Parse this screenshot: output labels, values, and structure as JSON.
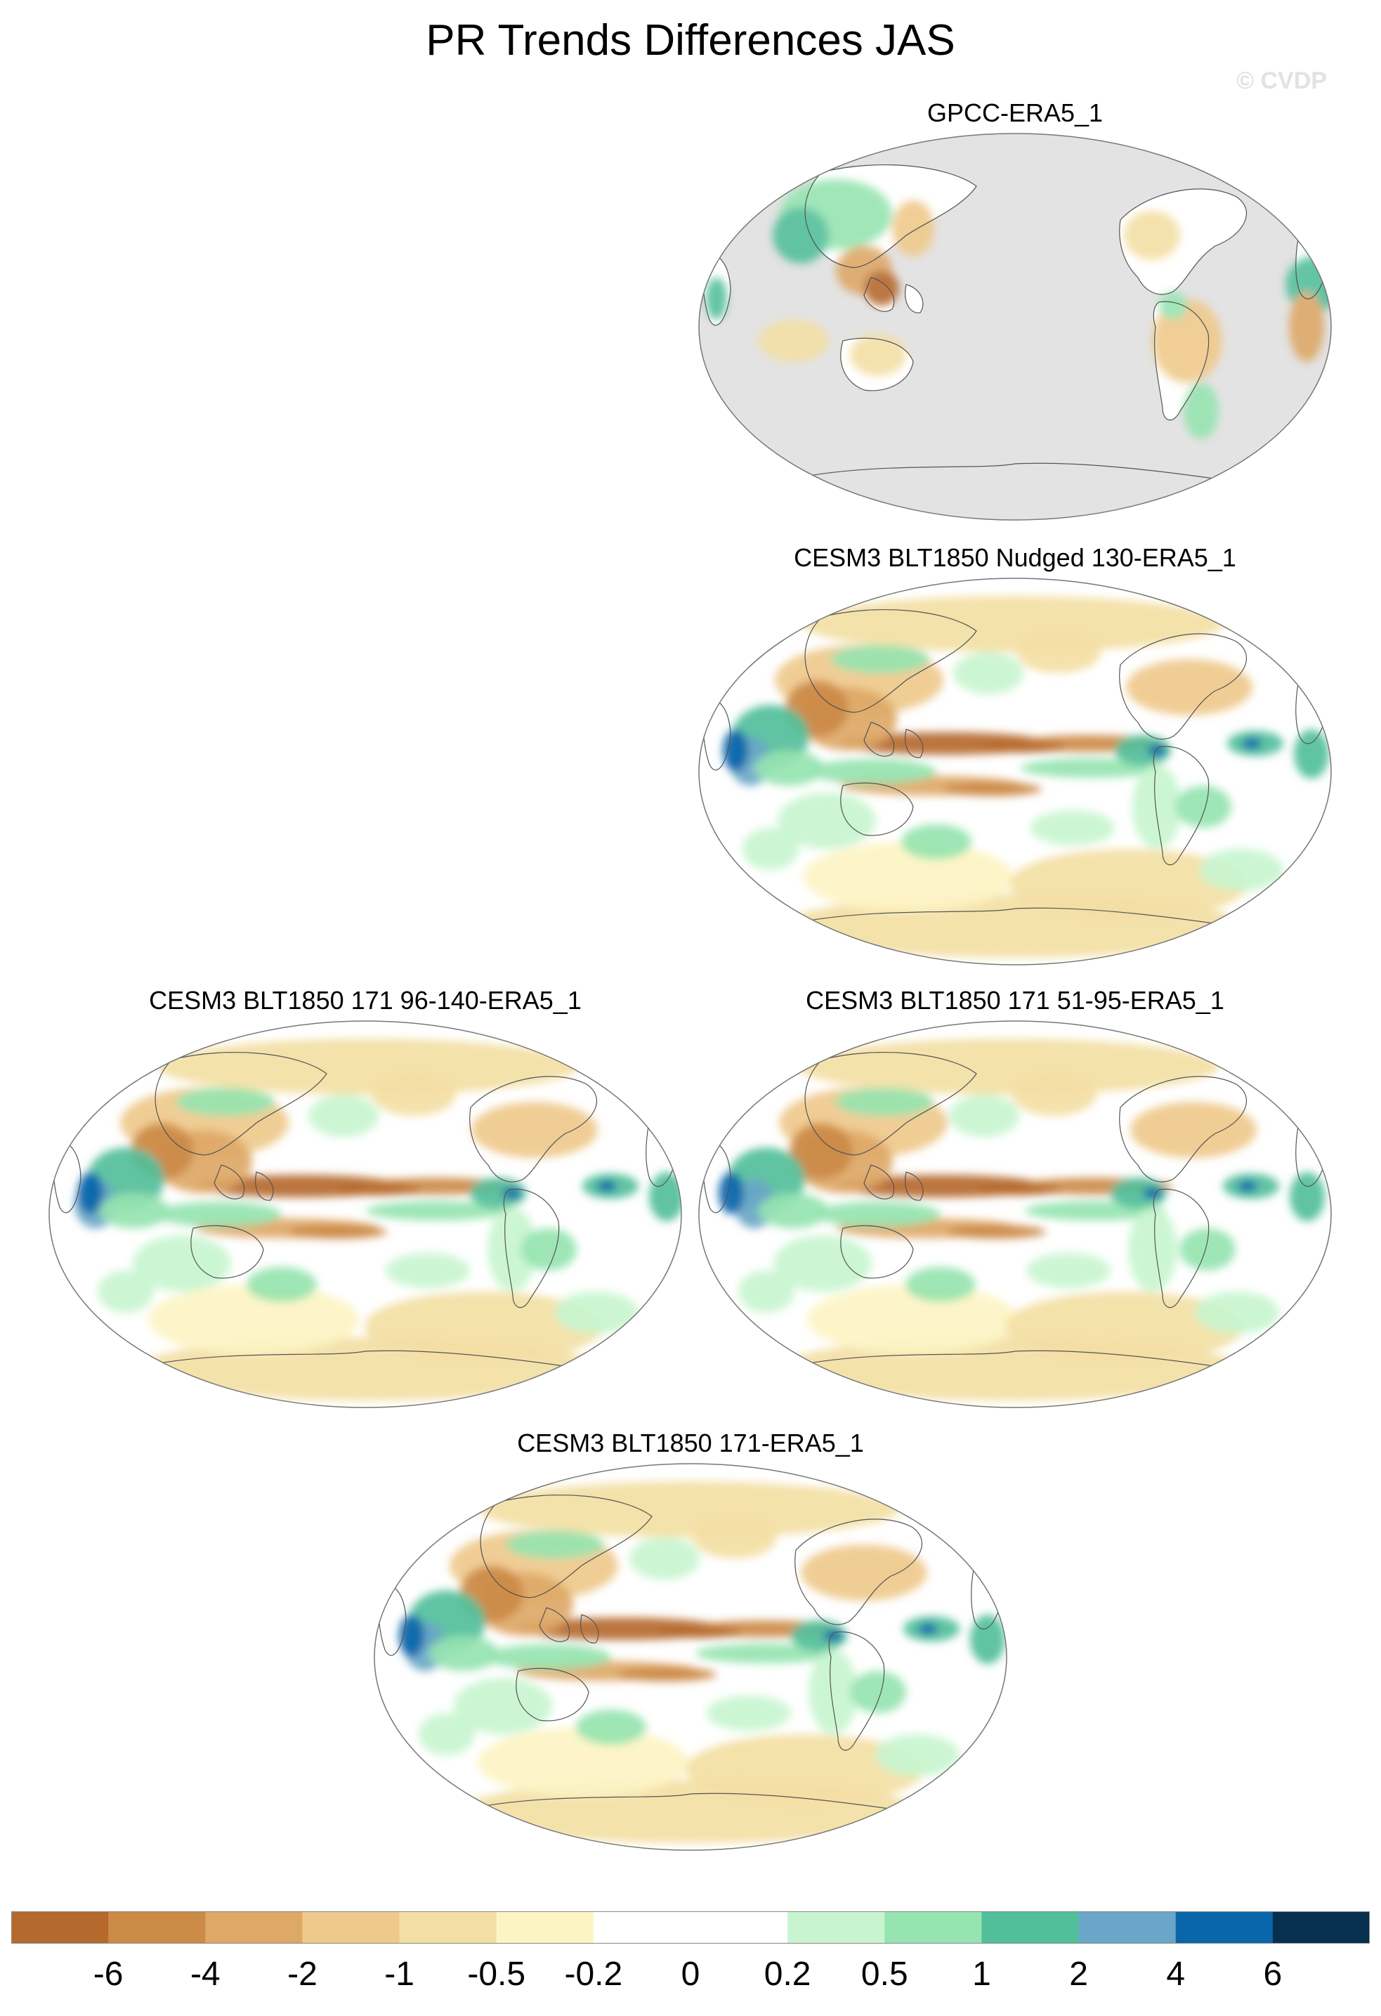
{
  "title": "PR Trends Differences JAS",
  "watermark": "© CVDP",
  "panels": [
    {
      "title": "GPCC-ERA5_1",
      "kind": "obs"
    },
    {
      "title": "CESM3 BLT1850 Nudged 130-ERA5_1",
      "kind": "model"
    },
    {
      "title": "CESM3 BLT1850 171 96-140-ERA5_1",
      "kind": "model"
    },
    {
      "title": "CESM3 BLT1850 171 51-95-ERA5_1",
      "kind": "model"
    },
    {
      "title": "CESM3 BLT1850 171-ERA5_1",
      "kind": "model"
    }
  ],
  "colorbar": {
    "colors": [
      "#b5692d",
      "#cc8a47",
      "#dea867",
      "#efc98b",
      "#f3dfa4",
      "#fdf4c4",
      "#ffffff",
      "#ffffff",
      "#c8f5cf",
      "#96e4b0",
      "#52bf9b",
      "#6aa6c8",
      "#0a66ab",
      "#07304f"
    ],
    "labels": [
      "-6",
      "-4",
      "-2",
      "-1",
      "-0.5",
      "-0.2",
      "0",
      "0.2",
      "0.5",
      "1",
      "2",
      "4",
      "6"
    ]
  },
  "colors": {
    "missing": "#e3e3e3",
    "coast": "#555555"
  }
}
